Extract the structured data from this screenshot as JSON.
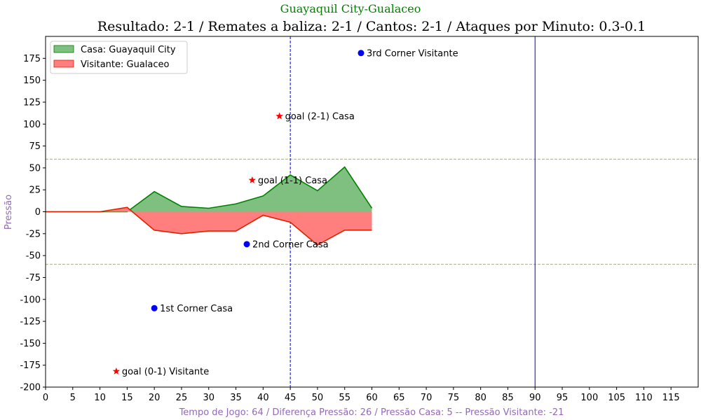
{
  "chart_data": {
    "type": "area",
    "suptitle": "Guayaquil City-Gualaceo",
    "title": "Resultado: 2-1 / Remates a baliza: 2-1 / Cantos: 2-1 / Ataques por Minuto: 0.3-0.1",
    "xlabel": "Tempo de Jogo: 64 / Diferença Pressão: 26 / Pressão Casa: 5 -- Pressão Visitante: -21",
    "ylabel": "Pressão",
    "xlim": [
      0,
      120
    ],
    "ylim": [
      -200,
      200
    ],
    "xticks": [
      0,
      5,
      10,
      15,
      20,
      25,
      30,
      35,
      40,
      45,
      50,
      55,
      60,
      65,
      70,
      75,
      80,
      85,
      90,
      95,
      100,
      105,
      110,
      115
    ],
    "yticks": [
      -200,
      -175,
      -150,
      -125,
      -100,
      -75,
      -50,
      -25,
      0,
      25,
      50,
      75,
      100,
      125,
      150,
      175
    ],
    "grid": false,
    "legend_position": "upper-left",
    "series": [
      {
        "name": "Casa: Guayaquil City",
        "color": "#008000",
        "fill": "#7fbf7f",
        "x": [
          0,
          5,
          10,
          15,
          20,
          25,
          30,
          35,
          40,
          45,
          50,
          55,
          60
        ],
        "values": [
          0,
          0,
          0,
          0,
          23,
          6,
          4,
          9,
          18,
          42,
          24,
          51,
          4
        ]
      },
      {
        "name": "Visitante: Gualaceo",
        "color": "#dd2200",
        "fill": "#ff7f7f",
        "x": [
          0,
          5,
          10,
          15,
          20,
          25,
          30,
          35,
          40,
          45,
          50,
          55,
          60
        ],
        "values": [
          0,
          0,
          0,
          5,
          -21,
          -25,
          -22,
          -22,
          -4,
          -12,
          -38,
          -21,
          -21
        ]
      }
    ],
    "reference_lines": {
      "horizontal": [
        {
          "y": 60,
          "color": "#bfbf00",
          "style": "dashed"
        },
        {
          "y": -60,
          "color": "#bfbf00",
          "style": "dashed"
        }
      ],
      "vertical": [
        {
          "x": 45,
          "color": "#0000cc",
          "style": "dashed"
        },
        {
          "x": 90,
          "color": "#0000cc",
          "style": "solid"
        }
      ]
    },
    "events": [
      {
        "x": 13,
        "y": -182,
        "marker": "star",
        "color": "#ff0000",
        "label": "goal (0-1) Visitante"
      },
      {
        "x": 20,
        "y": -110,
        "marker": "circle",
        "color": "#0000ff",
        "label": "1st Corner Casa"
      },
      {
        "x": 37,
        "y": -37,
        "marker": "circle",
        "color": "#0000ff",
        "label": "2nd Corner Casa"
      },
      {
        "x": 38,
        "y": 36,
        "marker": "star",
        "color": "#ff0000",
        "label": "goal (1-1) Casa"
      },
      {
        "x": 43,
        "y": 109,
        "marker": "star",
        "color": "#ff0000",
        "label": "goal (2-1) Casa"
      },
      {
        "x": 58,
        "y": 181,
        "marker": "circle",
        "color": "#0000ff",
        "label": "3rd Corner Visitante"
      }
    ]
  },
  "colors": {
    "suptitle": "#008000",
    "axis_label": "#9467bd"
  }
}
